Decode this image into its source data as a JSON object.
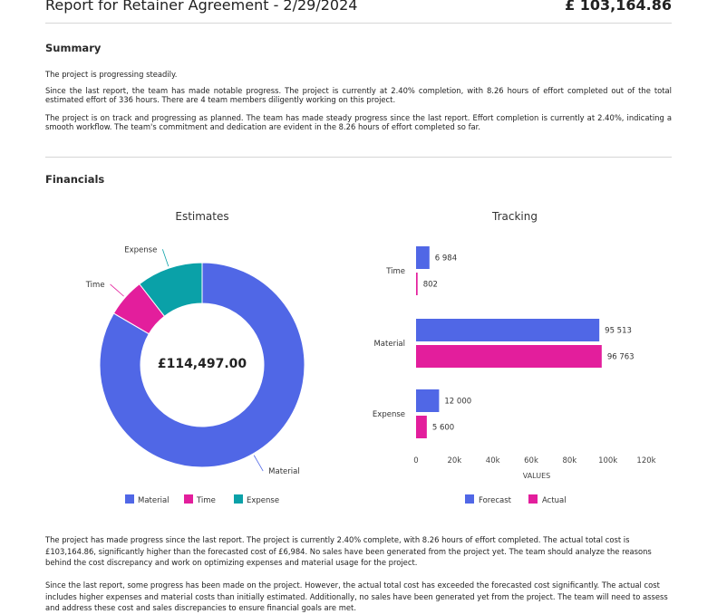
{
  "header": {
    "title": "Report for Retainer Agreement - 2/29/2024",
    "total_amount": "£ 103,164.86"
  },
  "summary": {
    "heading": "Summary",
    "paragraphs": [
      "The project is progressing steadily.",
      "Since the last report, the team has made notable progress. The project is currently at 2.40% completion, with 8.26 hours of effort completed out of the total estimated effort of 336 hours. There are 4 team members diligently working on this project.",
      "The project is on track and progressing as planned. The team has made steady progress since the last report. Effort completion is currently at 2.40%, indicating a smooth workflow. The team's commitment and dedication are evident in the 8.26 hours of effort completed so far."
    ]
  },
  "financials": {
    "heading": "Financials"
  },
  "colors": {
    "material": "#5067e6",
    "time": "#e31e9c",
    "expense": "#0aa1a8",
    "forecast": "#5067e6",
    "actual": "#e31e9c"
  },
  "chart_data": [
    {
      "type": "pie",
      "title": "Estimates",
      "center_label": "£114,497.00",
      "labels": [
        "Material",
        "Time",
        "Expense"
      ],
      "values": [
        95513,
        6984,
        12000
      ],
      "legend": [
        "Material",
        "Time",
        "Expense"
      ],
      "legend_position": "bottom"
    },
    {
      "type": "bar",
      "orientation": "horizontal",
      "title": "Tracking",
      "categories": [
        "Time",
        "Material",
        "Expense"
      ],
      "series": [
        {
          "name": "Forecast",
          "values": [
            6984,
            95513,
            12000
          ],
          "labels": [
            "6 984",
            "95 513",
            "12 000"
          ]
        },
        {
          "name": "Actual",
          "values": [
            802,
            96763,
            5600
          ],
          "labels": [
            "802",
            "96 763",
            "5 600"
          ]
        }
      ],
      "xlabel": "VALUES",
      "xlim": [
        0,
        120000
      ],
      "xticks": [
        "0",
        "20k",
        "40k",
        "60k",
        "80k",
        "100k",
        "120k"
      ],
      "grid": false,
      "legend_position": "bottom"
    }
  ],
  "bottom": {
    "paragraphs": [
      "The project has made progress since the last report. The project is currently 2.40% complete, with 8.26 hours of effort completed. The actual total cost is £103,164.86, significantly higher than the forecasted cost of £6,984. No sales have been generated from the project yet. The team should analyze the reasons behind the cost discrepancy and work on optimizing expenses and material usage for the project.",
      "Since the last report, some progress has been made on the project. However, the actual total cost has exceeded the forecasted cost significantly. The actual cost includes higher expenses and material costs than initially estimated. Additionally, no sales have been generated yet from the project. The team will need to assess and address these cost and sales discrepancies to ensure financial goals are met."
    ]
  }
}
